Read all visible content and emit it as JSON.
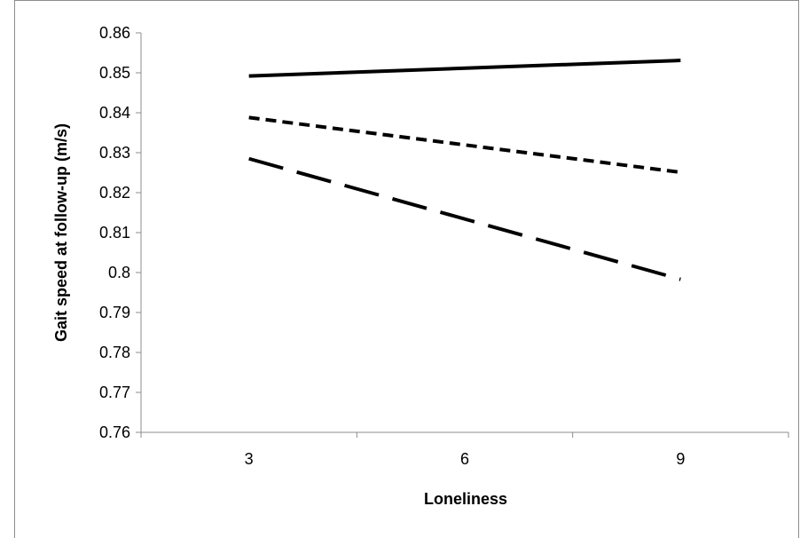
{
  "chart_data": {
    "type": "line",
    "title": "",
    "xlabel": "Loneliness",
    "ylabel": "Gait speed at follow-up (m/s)",
    "categories": [
      "3",
      "6",
      "9"
    ],
    "x": [
      3,
      9
    ],
    "ylim": [
      0.76,
      0.86
    ],
    "yticks": [
      "0.76",
      "0.77",
      "0.78",
      "0.79",
      "0.8",
      "0.81",
      "0.82",
      "0.83",
      "0.84",
      "0.85",
      "0.86"
    ],
    "grid": false,
    "legend": "none",
    "series": [
      {
        "style": "solid",
        "color": "#000000",
        "values": [
          0.8492,
          0.8531
        ]
      },
      {
        "style": "short-dash",
        "color": "#000000",
        "values": [
          0.8388,
          0.8251
        ]
      },
      {
        "style": "long-dash",
        "color": "#000000",
        "values": [
          0.8285,
          0.7983
        ]
      }
    ]
  }
}
